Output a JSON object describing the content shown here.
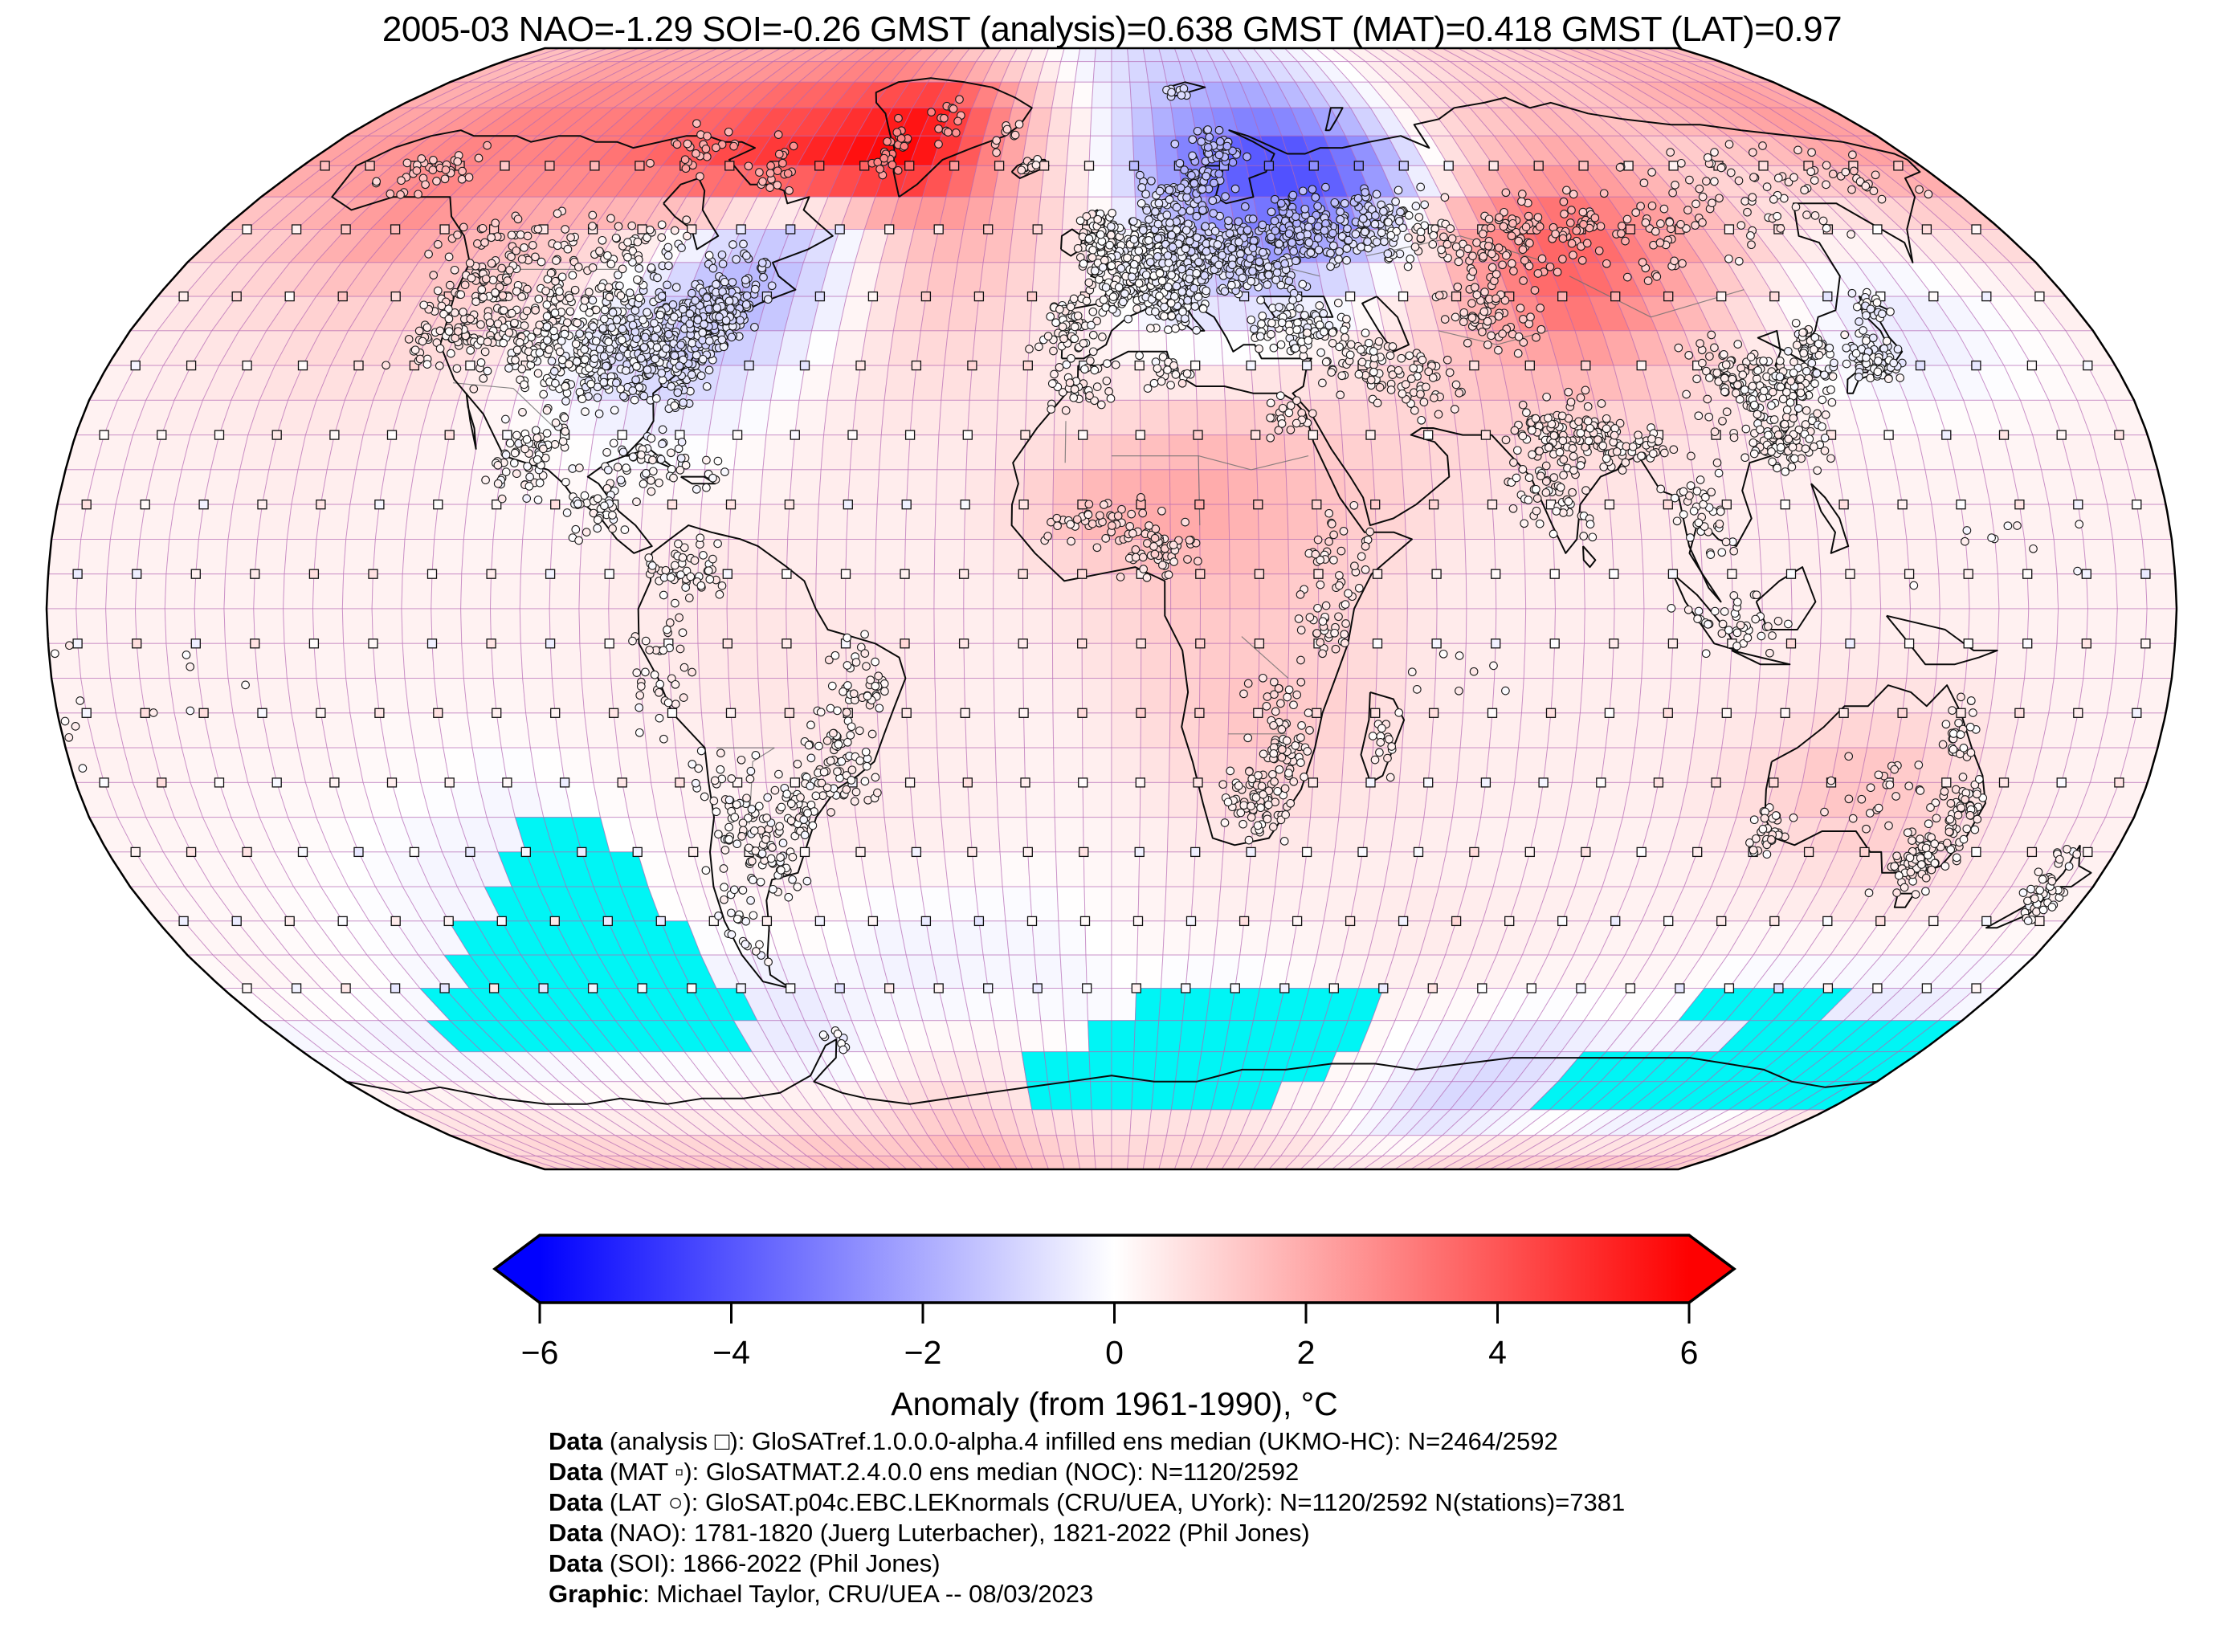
{
  "title": "2005-03 NAO=-1.29 SOI=-0.26 GMST (analysis)=0.638 GMST (MAT)=0.418 GMST (LAT)=0.97",
  "stats": {
    "date": "2005-03",
    "nao": -1.29,
    "soi": -0.26,
    "gmst_analysis": 0.638,
    "gmst_mat": 0.418,
    "gmst_lat": 0.97
  },
  "colorbar": {
    "label": "Anomaly (from 1961-1990), °C",
    "ticks": [
      "−6",
      "−4",
      "−2",
      "0",
      "2",
      "4",
      "6"
    ],
    "tick_values": [
      -6,
      -4,
      -2,
      0,
      2,
      4,
      6
    ],
    "min": -6,
    "max": 6,
    "color_negative": "#0101fe",
    "color_zero": "#ffffff",
    "color_positive": "#fe0101",
    "color_missing": "#00f5f5"
  },
  "footer": {
    "lines": [
      {
        "bold": "Data",
        "text": " (analysis □): GloSATref.1.0.0.0-alpha.4 infilled ens median (UKMO-HC): N=2464/2592"
      },
      {
        "bold": "Data",
        "text": " (MAT ▫): GloSATMAT.2.4.0.0 ens median (NOC): N=1120/2592"
      },
      {
        "bold": "Data",
        "text": " (LAT ○): GloSAT.p04c.EBC.LEKnormals (CRU/UEA, UYork): N=1120/2592 N(stations)=7381"
      },
      {
        "bold": "Data",
        "text": " (NAO): 1781-1820 (Juerg Luterbacher), 1821-2022 (Phil Jones)"
      },
      {
        "bold": "Data",
        "text": " (SOI): 1866-2022 (Phil Jones)"
      },
      {
        "bold": "Graphic",
        "text": ": Michael Taylor, CRU/UEA -- 08/03/2023"
      }
    ]
  },
  "chart_data": {
    "type": "heatmap",
    "subtype": "global-temperature-anomaly-map",
    "projection": "robinson",
    "units": "°C anomaly from 1961-1990",
    "value_range": [
      -6,
      6
    ],
    "colormap": "blue-white-red",
    "missing_data_color": "#00f5f5",
    "grid_cells_total": 2592,
    "lat_centers": [
      85,
      75,
      65,
      55,
      45,
      35,
      25,
      15,
      5,
      -5,
      -15,
      -25,
      -35,
      -45,
      -55,
      -65,
      -75,
      -85
    ],
    "lon_centers": [
      -175,
      -165,
      -155,
      -145,
      -135,
      -125,
      -115,
      -105,
      -95,
      -85,
      -75,
      -65,
      -55,
      -45,
      -35,
      -25,
      -15,
      -5,
      5,
      15,
      25,
      35,
      45,
      55,
      65,
      75,
      85,
      95,
      105,
      115,
      125,
      135,
      145,
      155,
      165,
      175
    ],
    "anomaly_rows": [
      "1.5,1.5,1.8,2,2,2,2,2,2.2,2.2,2.5,2.5,2,1.5,1,0.5,0,-0.5,-0.8,-1,-1,-0.8,-0.5,-0.3,0,0.3,0.5,0.8,1,1,1.2,1.2,1.5,1.5,1.5,1.5",
      "2,2.2,2.5,2.8,3,3,3.2,3.5,3.5,4,4,4.5,5,5.5,4,2.5,1,0,-1,-1.8,-2.2,-2.5,-2.2,-1.5,-0.5,0.5,1,1.2,1.5,1.5,1.5,1.8,2,2.2,2.5,2.2",
      "2.2,2.5,2.8,3,2.8,3,3.2,3.5,4,4.5,5,5.5,6,6,4.5,2.5,1,0.3,-1.5,-3,-4,-4.5,-4.5,-3.5,-1.5,0.5,1.5,2,2.2,1.8,1.2,1,1.2,1.5,2,2.2",
      "1.2,1.5,2,2.5,2.2,1.8,1.5,1.2,0.8,0.2,-0.8,-1.2,-0.5,1,1.8,1.8,1.2,0.5,-0.5,-1.5,-2.5,-3,-2.5,-1,1,2.5,3.5,3.8,3,2.2,1.5,0.8,0.5,0.5,0.8,1",
      "0.6,0.8,1,1.2,1.2,1.2,1,0.6,0,-1,-1.8,-1.8,-0.8,0.5,1.2,1.2,0.8,0.3,-0.2,-0.8,-1,-0.8,-0.3,0.5,1.5,2.8,3.8,3.2,2.2,1.2,0.3,-0.3,-0.5,-0.3,0,0.3",
      "0.4,0.5,0.6,0.8,0.8,0.8,0.6,0.2,-0.5,-1,-1.2,-0.8,0,0.5,0.8,0.8,0.6,0.4,0.3,0.2,0.3,0.5,0.8,1,1.5,1.8,2,1.5,1,0.5,0,-0.3,-0.4,-0.2,0,0.2",
      "0.3,0.4,0.4,0.5,0.5,0.4,0.3,0.2,0,-0.2,-0.2,0,0.3,0.5,0.5,0.5,0.6,0.8,1.2,1.5,1.5,1.2,1,1,1,1,0.8,0.8,0.6,0.4,0.3,0.2,0.2,0.2,0.3,0.3",
      "0.3,0.3,0.3,0.4,0.4,0.3,0.3,0.2,0.2,0.2,0.3,0.3,0.4,0.4,0.4,0.5,1,1.8,2.2,2.2,1.8,1.5,1.2,0.8,0.6,0.6,0.6,0.5,0.4,0.4,0.3,0.3,0.3,0.3,0.3,0.3",
      "0.3,0.3,0.3,0.3,0.3,0.3,0.3,0.3,0.3,0.4,0.5,0.6,0.5,0.4,0.4,0.4,0.5,0.8,1.2,1.5,1.5,1.2,0.8,0.5,0.4,0.4,0.4,0.4,0.4,0.4,0.4,0.4,0.3,0.3,0.3,0.3",
      "0.3,0.3,0.3,0.3,0.3,0.3,0.3,0.3,0.3,0.4,0.5,0.6,0.6,0.6,0.5,0.4,0.4,0.6,1,1.2,1.2,1,0.8,0.5,0.4,0.4,0.4,0.4,0.4,0.4,0.4,0.4,0.4,0.3,0.3,0.3",
      "0.3,0.3,0.3,0.3,0.3,0.2,0.2,0.2,0.3,0.3,0.4,0.5,0.6,0.6,0.5,0.4,0.3,0.4,0.8,1.2,1.5,1.2,0.8,0.5,0.4,0.4,0.4,0.4,0.5,0.6,0.8,0.8,0.6,0.4,0.3,0.3",
      "0.3,0.3,0.2,0.2,0.2,0.1,0,-0.2,0,0.2,0.3,0.3,0.4,0.5,0.4,0.4,0.3,0.3,0.5,0.8,1,0.8,0.6,0.5,0.4,0.4,0.4,0.4,0.6,1,1.5,1.5,1,0.5,0.3,0.3",
      "0.2,0.2,0.2,0.1,0,-0.2,-0.3,-0.3,-0.2,0,0.2,0.3,0.3,0.4,0.4,0.3,0.2,0.2,0.3,0.4,0.5,0.4,0.4,0.4,0.3,0.3,0.3,0.3,0.4,0.5,0.8,1,1,0.6,0.4,0.4",
      "0.2,0.2,0.1,0,-0.1,-0.2,-0.2,-0.2,-0.1,0,0.1,0.2,0.2,-0.2,-0.2,-0.2,-0.2,0,0.2,0.3,0.3,0.3,0.4,0.5,0.5,0.4,0.4,0.3,0.3,0.3,0.3,0.4,0.4,0.4,0.4,0.3",
      "0.3,0.2,0.1,0,-0.2,-0.3,-0.3,-0.3,-0.2,-0.3,-0.4,-0.5,-0.3,-0.3,-0.3,-0.2,-0.2,-0.2,0,-0.2,-0.2,0,0.2,0.3,0.3,0.3,0.2,0.2,0.2,0.1,-0.2,-0.3,-0.3,-0.4,-0.4,-0.3",
      "-0.3,-0.3,-0.4,-0.4,-0.3,-0.3,-0.2,-0.2,-0.2,-0.3,-0.5,-0.5,-0.2,0.2,0.3,0.3,0.2,0,-0.2,-0.3,-0.3,-0.2,0,0.2,-0.2,-0.5,-0.8,-0.8,-0.5,-0.3,-0.3,-0.5,-0.8,-0.8,-0.5,-0.3",
      "0.5,0.5,0.5,0.3,0.2,0.2,0.3,0.3,0.3,0.5,0.6,0.5,0.8,1,1,0.8,0.6,0.5,0.5,0.6,0.6,0.5,0.3,0.2,-0.3,-0.8,-1,-0.8,-0.5,-0.3,-0.5,-0.8,-0.8,-0.5,0,0.3",
      "1,1,1.2,1.2,1.2,1.2,1.2,1.2,1.2,1.5,1.5,1.5,1.5,1.8,1.8,1.5,1.2,1,1,1,1,1,0.8,0.8,0.5,0.5,0.5,0.8,0.8,1,1,1,1.2,1.2,1.2,1.2"
    ],
    "missing_data_patches": [
      {
        "lat": [
          -30,
          -35
        ],
        "lon": [
          -104,
          -92
        ]
      },
      {
        "lat": [
          -35,
          -40
        ],
        "lon": [
          -108,
          -88
        ]
      },
      {
        "lat": [
          -40,
          -45
        ],
        "lon": [
          -115,
          -85
        ]
      },
      {
        "lat": [
          -45,
          -50
        ],
        "lon": [
          -122,
          -82
        ]
      },
      {
        "lat": [
          -50,
          -55
        ],
        "lon": [
          -130,
          -80
        ]
      },
      {
        "lat": [
          -55,
          -60
        ],
        "lon": [
          -140,
          -78
        ]
      },
      {
        "lat": [
          -60,
          -65
        ],
        "lon": [
          -145,
          -82
        ]
      },
      {
        "lat": [
          -55,
          -60
        ],
        "lon": [
          120,
          146
        ]
      },
      {
        "lat": [
          -57,
          -62
        ],
        "lon": [
          8,
          55
        ]
      },
      {
        "lat": [
          -62,
          -67
        ],
        "lon": [
          -5,
          48
        ]
      },
      {
        "lat": [
          -67,
          -71
        ],
        "lon": [
          -20,
          40
        ]
      },
      {
        "lat": [
          -60,
          -66
        ],
        "lon": [
          138,
          177
        ]
      },
      {
        "lat": [
          -66,
          -71
        ],
        "lon": [
          105,
          180
        ]
      },
      {
        "lat": [
          -71,
          -75
        ],
        "lon": [
          150,
          180
        ]
      }
    ],
    "marker_types": [
      {
        "symbol": "□",
        "name": "analysis grid cell"
      },
      {
        "symbol": "▫",
        "name": "MAT marine air temperature cell"
      },
      {
        "symbol": "○",
        "name": "LAT land station"
      }
    ]
  }
}
